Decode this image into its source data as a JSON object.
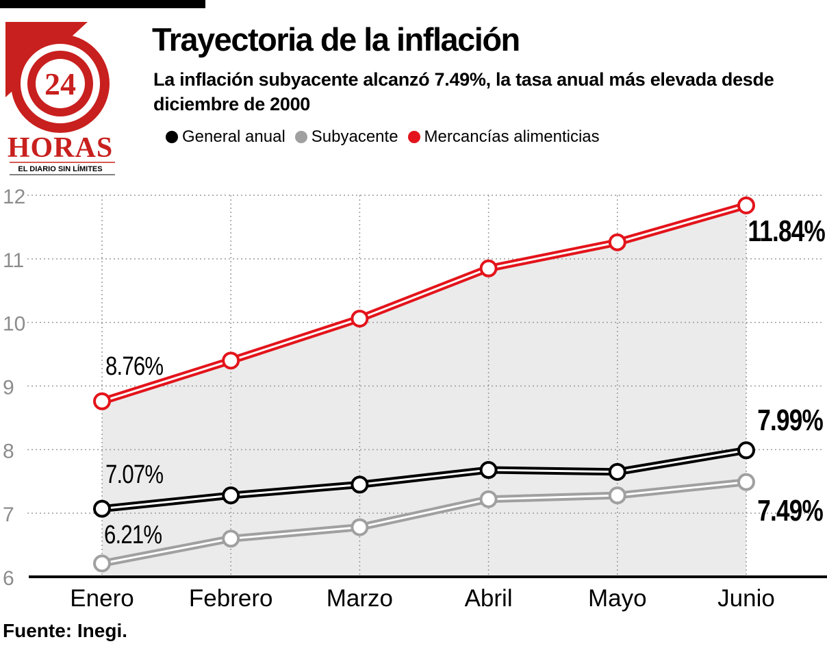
{
  "header": {
    "title": "Trayectoria de la inflación",
    "subtitle": "La inflación subyacente alcanzó 7.49%, la tasa anual más elevada desde diciembre de 2000"
  },
  "logo": {
    "number": "24",
    "word": "HORAS",
    "tagline": "EL DIARIO SIN LÍMITES",
    "color": "#c8201e"
  },
  "legend": [
    {
      "label": "General anual",
      "color": "#000000"
    },
    {
      "label": "Subyacente",
      "color": "#a0a0a0"
    },
    {
      "label": "Mercancías alimenticias",
      "color": "#e3141b"
    }
  ],
  "source": "Fuente: Inegi.",
  "chart_data": {
    "type": "line",
    "categories": [
      "Enero",
      "Febrero",
      "Marzo",
      "Abril",
      "Mayo",
      "Junio"
    ],
    "ylim": [
      6,
      12
    ],
    "yticks": [
      "6",
      "7",
      "8",
      "9",
      "10",
      "11",
      "12"
    ],
    "grid": true,
    "area_fill": "#ebebeb",
    "series": [
      {
        "name": "Mercancías alimenticias",
        "color": "#e3141b",
        "values": [
          8.76,
          9.4,
          10.06,
          10.85,
          11.26,
          11.84
        ],
        "labels": [
          "8.76%",
          "",
          "",
          "",
          "",
          "11.84%"
        ]
      },
      {
        "name": "General anual",
        "color": "#000000",
        "values": [
          7.07,
          7.28,
          7.45,
          7.68,
          7.65,
          7.99
        ],
        "labels": [
          "7.07%",
          "",
          "",
          "",
          "",
          "7.99%"
        ]
      },
      {
        "name": "Subyacente",
        "color": "#a0a0a0",
        "values": [
          6.21,
          6.6,
          6.78,
          7.22,
          7.28,
          7.49
        ],
        "labels": [
          "6.21%",
          "",
          "",
          "",
          "",
          "7.49%"
        ]
      }
    ]
  }
}
